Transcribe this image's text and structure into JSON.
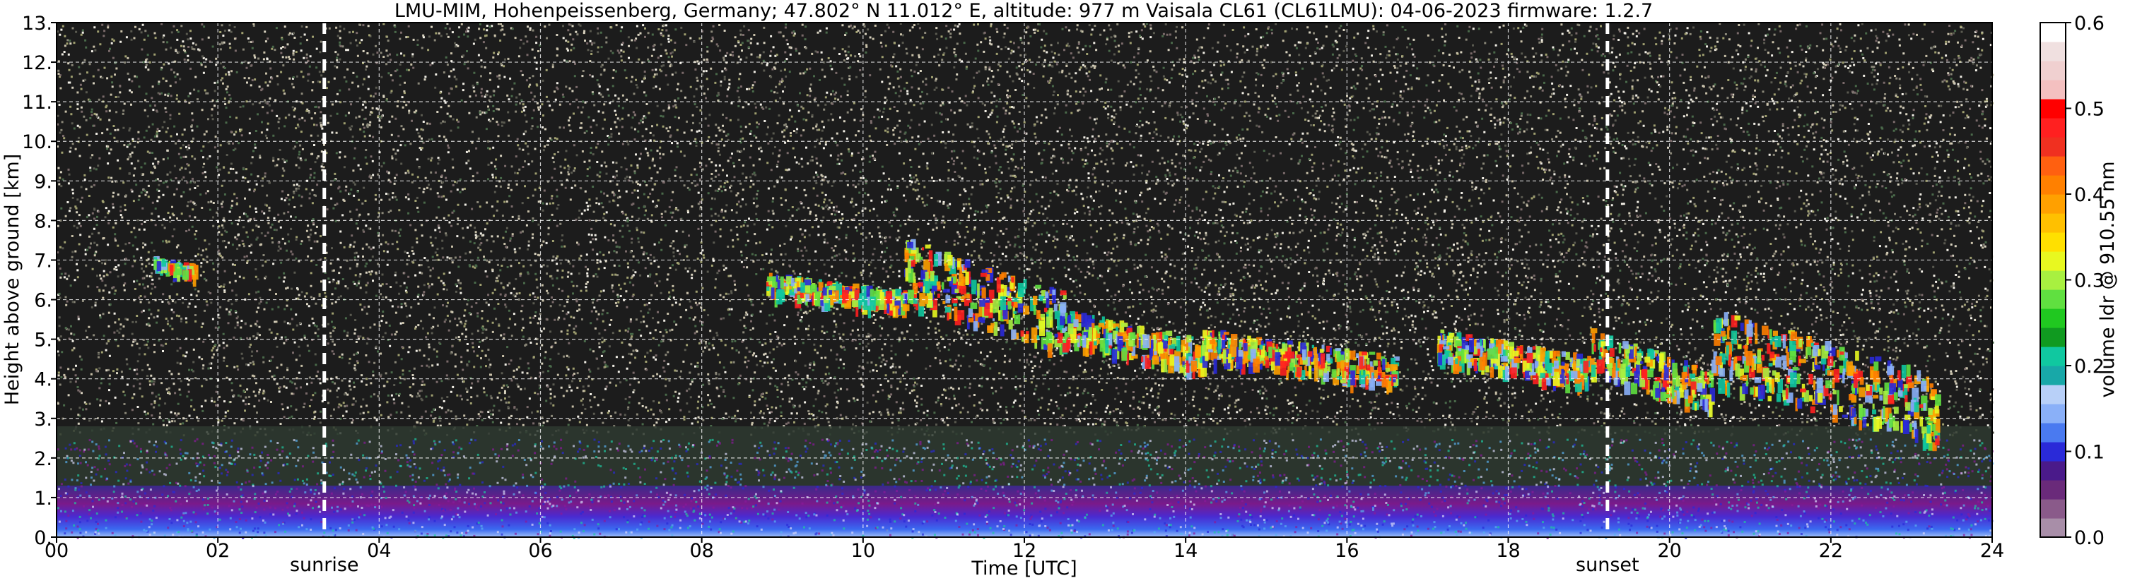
{
  "chart_data": {
    "type": "heatmap",
    "title": "LMU-MIM, Hohenpeissenberg, Germany; 47.802° N 11.012° E, altitude: 977 m    Vaisala CL61 (CL61LMU): 04-06-2023    firmware: 1.2.7",
    "xlabel": "Time [UTC]",
    "ylabel": "Height above ground [km]",
    "xlim": [
      0,
      24
    ],
    "ylim": [
      0,
      13
    ],
    "x_ticks": [
      0,
      2,
      4,
      6,
      8,
      10,
      12,
      14,
      16,
      18,
      20,
      22,
      24
    ],
    "x_tick_labels": [
      "00",
      "02",
      "04",
      "06",
      "08",
      "10",
      "12",
      "14",
      "16",
      "18",
      "20",
      "22",
      "24"
    ],
    "y_ticks": [
      0,
      1,
      2,
      3,
      4,
      5,
      6,
      7,
      8,
      9,
      10,
      11,
      12,
      13
    ],
    "y_tick_labels": [
      "0.",
      "1.",
      "2.",
      "3.",
      "4.",
      "5.",
      "6.",
      "7.",
      "8.",
      "9.",
      "10.",
      "11.",
      "12.",
      "13."
    ],
    "grid": true,
    "annotations": [
      {
        "label": "sunrise",
        "x": 3.32
      },
      {
        "label": "sunset",
        "x": 19.23
      }
    ],
    "colorbar": {
      "label": "volume ldr @ 910.55 nm",
      "range": [
        0,
        0.6
      ],
      "ticks": [
        0.0,
        0.1,
        0.2,
        0.3,
        0.4,
        0.5,
        0.6
      ],
      "tick_labels": [
        "0.0",
        "0.1",
        "0.2",
        "0.3",
        "0.4",
        "0.5",
        "0.6"
      ],
      "colors": [
        "#a88ea8",
        "#8a5a8a",
        "#6a2a7a",
        "#4a1a8a",
        "#2a2ad8",
        "#4a7af0",
        "#8ab0f8",
        "#b8d0f8",
        "#18a8a8",
        "#10c8a0",
        "#109a20",
        "#20c820",
        "#60e040",
        "#a8f040",
        "#e8f820",
        "#ffe000",
        "#ffc000",
        "#ffa000",
        "#ff8000",
        "#ff6010",
        "#f03020",
        "#ff2020",
        "#ff0000",
        "#f4c0c0",
        "#f0d0d0",
        "#f0e0e0",
        "#ffffff"
      ]
    },
    "features": {
      "noise_top_km": 13,
      "boundary_layer_km": [
        0,
        1.3
      ],
      "aerosol_layer_km": [
        1.3,
        2.8
      ],
      "cloud_segments": [
        {
          "t": [
            1.2,
            1.7
          ],
          "h": [
            6.7,
            7.1
          ]
        },
        {
          "t": [
            8.8,
            10.5
          ],
          "h": [
            5.8,
            6.7
          ]
        },
        {
          "t": [
            10.5,
            12.5
          ],
          "h": [
            4.8,
            7.6
          ]
        },
        {
          "t": [
            12.5,
            14.2
          ],
          "h": [
            4.3,
            5.8
          ]
        },
        {
          "t": [
            14.2,
            16.6
          ],
          "h": [
            3.9,
            5.3
          ]
        },
        {
          "t": [
            17.1,
            19.0
          ],
          "h": [
            3.9,
            5.3
          ]
        },
        {
          "t": [
            19.0,
            20.5
          ],
          "h": [
            3.3,
            5.3
          ]
        },
        {
          "t": [
            20.5,
            23.3
          ],
          "h": [
            2.5,
            5.8
          ]
        }
      ]
    }
  }
}
